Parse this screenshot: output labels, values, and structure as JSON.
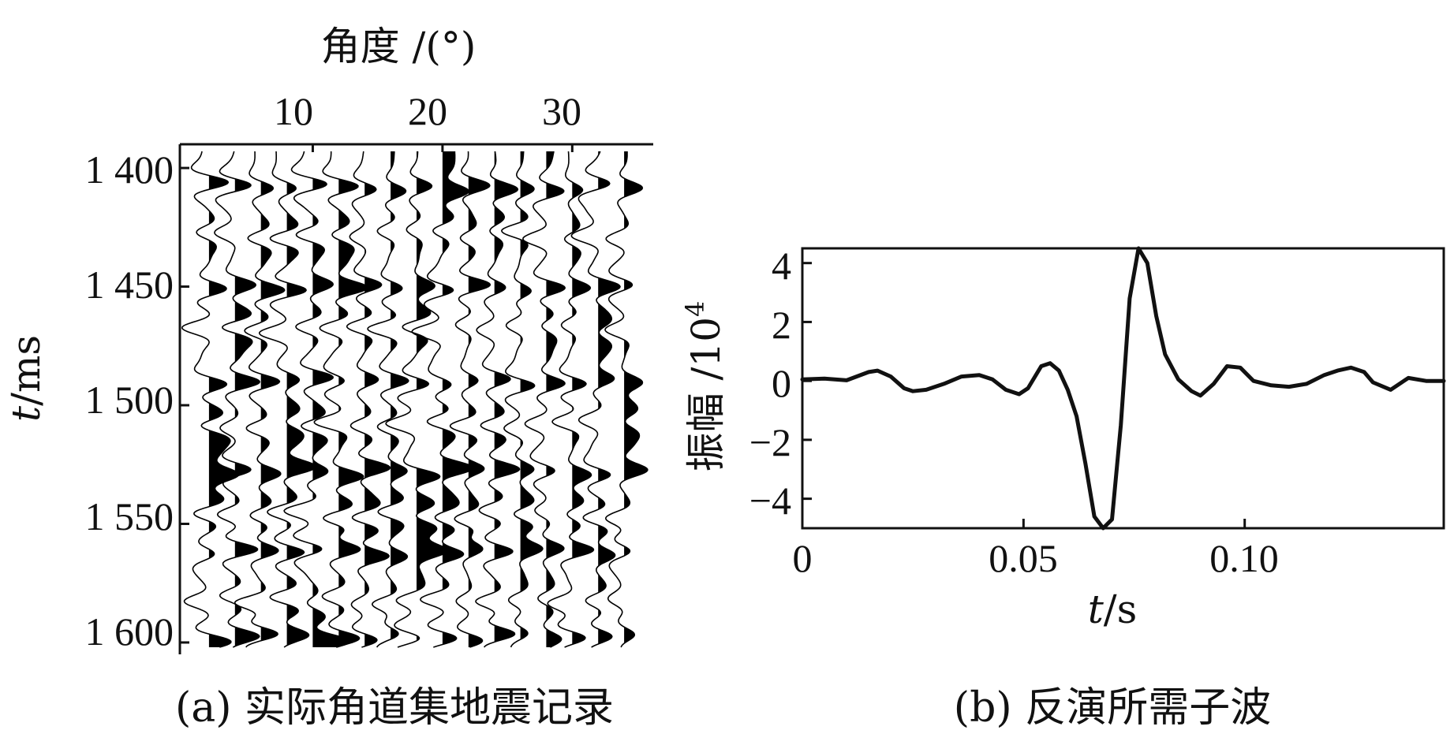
{
  "panel_a": {
    "caption": "(a) 实际角道集地震记录",
    "x_title": "角度 /(°)",
    "x_ticks": [
      "10",
      "20",
      "30"
    ],
    "y_title_italic": "t",
    "y_title_rest": "/ms",
    "y_ticks": [
      "1 400",
      "1 450",
      "1 500",
      "1 550",
      "1 600"
    ]
  },
  "panel_b": {
    "caption": "(b) 反演所需子波",
    "x_title_italic": "t",
    "x_title_rest": "/s",
    "x_ticks": [
      "0",
      "0.05",
      "0.10"
    ],
    "y_title": "振幅 /10",
    "y_title_sup": "4",
    "y_ticks": [
      "4",
      "2",
      "0",
      "−2",
      "−4"
    ]
  },
  "chart_data": [
    {
      "type": "wiggle",
      "title": "",
      "xlabel": "角度 /(°)",
      "ylabel": "t/ms",
      "x_ticks": [
        10,
        20,
        30
      ],
      "y_ticks": [
        1400,
        1450,
        1500,
        1550,
        1600
      ],
      "xlim": [
        0,
        36
      ],
      "ylim": [
        1390,
        1605
      ],
      "angles": [
        2,
        4,
        6,
        8,
        10,
        12,
        14,
        16,
        18,
        20,
        22,
        24,
        26,
        28,
        30,
        32,
        34
      ],
      "event_times": [
        1408,
        1428,
        1450,
        1468,
        1490,
        1508,
        1528,
        1546,
        1562,
        1582,
        1598
      ],
      "fill": "positive-black",
      "color": "#000000"
    },
    {
      "type": "line",
      "title": "",
      "xlabel": "t/s",
      "ylabel": "振幅 /10^4",
      "xlim": [
        0,
        0.145
      ],
      "ylim": [
        -5,
        4.5
      ],
      "x_ticks": [
        0,
        0.05,
        0.1
      ],
      "y_ticks": [
        4,
        2,
        0,
        -2,
        -4
      ],
      "color": "#000000",
      "x": [
        0,
        0.005,
        0.01,
        0.015,
        0.017,
        0.02,
        0.023,
        0.025,
        0.028,
        0.032,
        0.036,
        0.04,
        0.043,
        0.046,
        0.049,
        0.051,
        0.054,
        0.056,
        0.058,
        0.06,
        0.062,
        0.064,
        0.066,
        0.068,
        0.07,
        0.072,
        0.074,
        0.076,
        0.078,
        0.08,
        0.082,
        0.085,
        0.088,
        0.09,
        0.093,
        0.096,
        0.099,
        0.102,
        0.106,
        0.11,
        0.114,
        0.118,
        0.121,
        0.124,
        0.127,
        0.129,
        0.133,
        0.137,
        0.141,
        0.145
      ],
      "y": [
        0.05,
        0.08,
        0.02,
        0.3,
        0.35,
        0.15,
        -0.25,
        -0.35,
        -0.3,
        -0.1,
        0.15,
        0.2,
        0.05,
        -0.3,
        -0.45,
        -0.25,
        0.5,
        0.6,
        0.35,
        -0.3,
        -1.2,
        -2.8,
        -4.6,
        -5.0,
        -4.7,
        -1.5,
        2.8,
        4.5,
        4.0,
        2.2,
        0.9,
        0.05,
        -0.35,
        -0.5,
        -0.1,
        0.5,
        0.45,
        0.0,
        -0.15,
        -0.2,
        -0.1,
        0.2,
        0.35,
        0.45,
        0.3,
        -0.05,
        -0.3,
        0.1,
        0.0,
        0.0
      ]
    }
  ]
}
